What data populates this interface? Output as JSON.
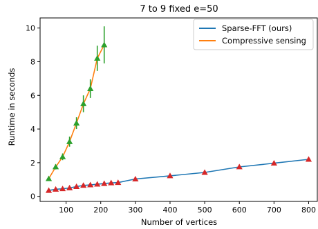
{
  "chart_data": {
    "type": "line",
    "title": "7 to 9 fixed e=50",
    "xlabel": "Number of vertices",
    "ylabel": "Runtime in seconds",
    "xlim": [
      25,
      825
    ],
    "ylim": [
      -0.3,
      10.6
    ],
    "xticks": [
      0,
      100,
      200,
      300,
      400,
      500,
      600,
      700,
      800
    ],
    "yticks": [
      0,
      2,
      4,
      6,
      8,
      10
    ],
    "grid": false,
    "legend_position": "top-right",
    "series": [
      {
        "name": "Sparse-FFT (ours)",
        "color": "#1f77b4",
        "marker_color": "#d62728",
        "x": [
          50,
          70,
          90,
          110,
          130,
          150,
          170,
          190,
          210,
          230,
          250,
          300,
          400,
          500,
          600,
          700,
          800
        ],
        "y": [
          0.35,
          0.42,
          0.45,
          0.5,
          0.58,
          0.65,
          0.68,
          0.72,
          0.76,
          0.8,
          0.82,
          1.03,
          1.22,
          1.42,
          1.75,
          1.97,
          2.2
        ],
        "err": [
          0.05,
          0.05,
          0.05,
          0.05,
          0.05,
          0.05,
          0.05,
          0.05,
          0.05,
          0.05,
          0.05,
          0.06,
          0.06,
          0.07,
          0.08,
          0.08,
          0.1
        ]
      },
      {
        "name": "Compressive sensing",
        "color": "#ff7f0e",
        "marker_color": "#2ca02c",
        "x": [
          50,
          70,
          90,
          110,
          130,
          150,
          170,
          190,
          210
        ],
        "y": [
          1.05,
          1.75,
          2.35,
          3.25,
          4.35,
          5.5,
          6.4,
          8.2,
          9.0
        ],
        "err": [
          0.1,
          0.15,
          0.2,
          0.3,
          0.35,
          0.5,
          0.55,
          0.75,
          1.1
        ]
      }
    ]
  }
}
